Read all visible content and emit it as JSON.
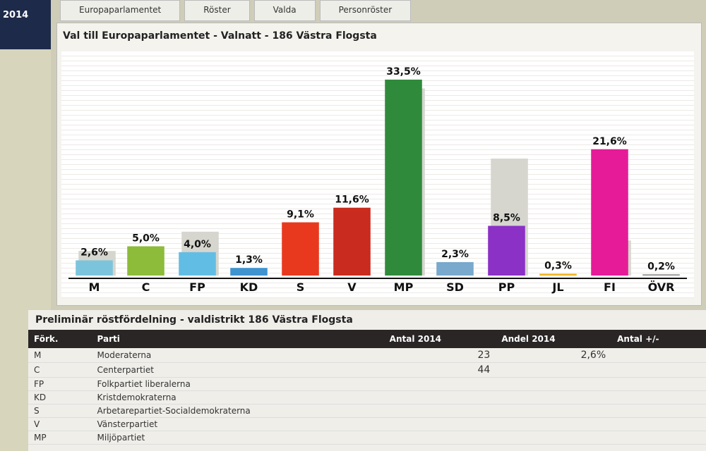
{
  "sidebar": {
    "year": "2014"
  },
  "tabs": [
    "Europaparlamentet",
    "Röster",
    "Valda",
    "Personröster"
  ],
  "chart_data": {
    "type": "bar",
    "title": "Val till Europaparlamentet - Valnatt - 186 Västra Flogsta",
    "categories": [
      "M",
      "C",
      "FP",
      "KD",
      "S",
      "V",
      "MP",
      "SD",
      "PP",
      "JL",
      "FI",
      "ÖVR"
    ],
    "values": [
      2.6,
      5.0,
      4.0,
      1.3,
      9.1,
      11.6,
      33.5,
      2.3,
      8.5,
      0.3,
      21.6,
      0.2
    ],
    "value_labels": [
      "2,6%",
      "5,0%",
      "4,0%",
      "1,3%",
      "9,1%",
      "11,6%",
      "33,5%",
      "2,3%",
      "8,5%",
      "0,3%",
      "21,6%",
      "0,2%"
    ],
    "colors": [
      "#7cc4dc",
      "#8dbb3a",
      "#62bde4",
      "#3f93cf",
      "#e8391f",
      "#c92b1e",
      "#2f8b3b",
      "#79a9cc",
      "#8b31c6",
      "#efb21f",
      "#e61b98",
      "#8a8a8a"
    ],
    "previous_values": [
      4.2,
      null,
      7.5,
      null,
      null,
      null,
      32.0,
      null,
      20.0,
      null,
      6.0,
      null
    ],
    "previous_color": "#d6d6cf"
  },
  "table": {
    "title": "Preliminär röstfördelning - valdistrikt 186 Västra Flogsta",
    "headers": [
      "Förk.",
      "Parti",
      "Antal 2014",
      "Andel 2014",
      "Antal +/-"
    ],
    "rows": [
      [
        "M",
        "Moderaterna",
        "23",
        "2,6%"
      ],
      [
        "C",
        "Centerpartiet",
        "44"
      ],
      [
        "FP",
        "Folkpartiet liberalerna"
      ],
      [
        "KD",
        "Kristdemokraterna"
      ],
      [
        "S",
        "Arbetarepartiet-Socialdemokraterna"
      ],
      [
        "V",
        "Vänsterpartiet"
      ],
      [
        "MP",
        "Miljöpartiet"
      ]
    ]
  }
}
